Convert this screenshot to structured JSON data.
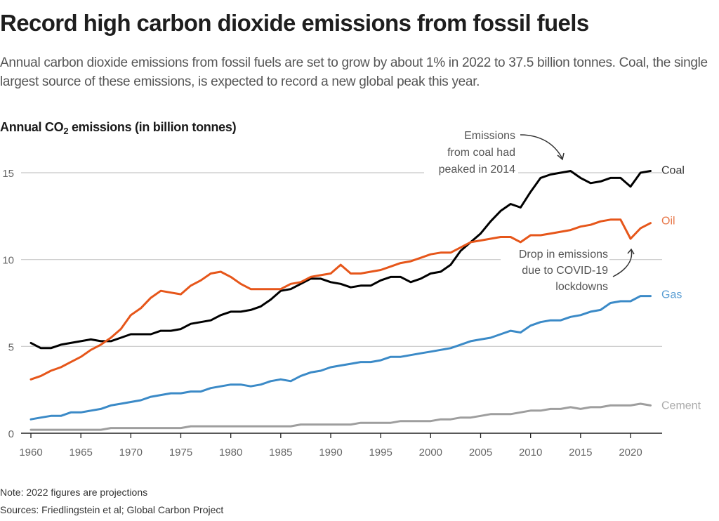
{
  "header": {
    "title": "Record high carbon dioxide emissions from fossil fuels",
    "subtitle": "Annual carbon dioxide emissions from fossil fuels are set to grow by about 1% in 2022 to 37.5 billion tonnes. Coal, the single largest source of these emissions, is expected to record a new global peak this year."
  },
  "chart_title": {
    "prefix": "Annual CO",
    "subscript": "2",
    "suffix": " emissions (in billion tonnes)"
  },
  "footer": {
    "note": "Note: 2022 figures are projections",
    "source": "Sources: Friedlingstein et al; Global Carbon Project"
  },
  "chart_data": {
    "type": "line",
    "title": "Annual CO2 emissions (in billion tonnes)",
    "xlabel": "",
    "ylabel": "",
    "xlim": [
      1960,
      2022
    ],
    "ylim": [
      0,
      15
    ],
    "grid": true,
    "legend": "inline-right",
    "x_ticks": [
      1960,
      1965,
      1970,
      1975,
      1980,
      1985,
      1990,
      1995,
      2000,
      2005,
      2010,
      2015,
      2020
    ],
    "y_ticks": [
      0,
      5,
      10,
      15
    ],
    "x": [
      1960,
      1961,
      1962,
      1963,
      1964,
      1965,
      1966,
      1967,
      1968,
      1969,
      1970,
      1971,
      1972,
      1973,
      1974,
      1975,
      1976,
      1977,
      1978,
      1979,
      1980,
      1981,
      1982,
      1983,
      1984,
      1985,
      1986,
      1987,
      1988,
      1989,
      1990,
      1991,
      1992,
      1993,
      1994,
      1995,
      1996,
      1997,
      1998,
      1999,
      2000,
      2001,
      2002,
      2003,
      2004,
      2005,
      2006,
      2007,
      2008,
      2009,
      2010,
      2011,
      2012,
      2013,
      2014,
      2015,
      2016,
      2017,
      2018,
      2019,
      2020,
      2021,
      2022
    ],
    "series": [
      {
        "name": "Coal",
        "color": "#000000",
        "label_color": "#333333",
        "values": [
          5.2,
          4.9,
          4.9,
          5.1,
          5.2,
          5.3,
          5.4,
          5.3,
          5.3,
          5.5,
          5.7,
          5.7,
          5.7,
          5.9,
          5.9,
          6.0,
          6.3,
          6.4,
          6.5,
          6.8,
          7.0,
          7.0,
          7.1,
          7.3,
          7.7,
          8.2,
          8.3,
          8.6,
          8.9,
          8.9,
          8.7,
          8.6,
          8.4,
          8.5,
          8.5,
          8.8,
          9.0,
          9.0,
          8.7,
          8.9,
          9.2,
          9.3,
          9.7,
          10.5,
          11.0,
          11.5,
          12.2,
          12.8,
          13.2,
          13.0,
          13.9,
          14.7,
          14.9,
          15.0,
          15.1,
          14.7,
          14.4,
          14.5,
          14.7,
          14.7,
          14.2,
          15.0,
          15.1
        ]
      },
      {
        "name": "Oil",
        "color": "#e6561a",
        "label_color": "#e8784a",
        "values": [
          3.1,
          3.3,
          3.6,
          3.8,
          4.1,
          4.4,
          4.8,
          5.1,
          5.5,
          6.0,
          6.8,
          7.2,
          7.8,
          8.2,
          8.1,
          8.0,
          8.5,
          8.8,
          9.2,
          9.3,
          9.0,
          8.6,
          8.3,
          8.3,
          8.3,
          8.3,
          8.6,
          8.7,
          9.0,
          9.1,
          9.2,
          9.7,
          9.2,
          9.2,
          9.3,
          9.4,
          9.6,
          9.8,
          9.9,
          10.1,
          10.3,
          10.4,
          10.4,
          10.7,
          11.0,
          11.1,
          11.2,
          11.3,
          11.3,
          11.0,
          11.4,
          11.4,
          11.5,
          11.6,
          11.7,
          11.9,
          12.0,
          12.2,
          12.3,
          12.3,
          11.2,
          11.8,
          12.1
        ]
      },
      {
        "name": "Gas",
        "color": "#3b8ac7",
        "label_color": "#5a9ed3",
        "values": [
          0.8,
          0.9,
          1.0,
          1.0,
          1.2,
          1.2,
          1.3,
          1.4,
          1.6,
          1.7,
          1.8,
          1.9,
          2.1,
          2.2,
          2.3,
          2.3,
          2.4,
          2.4,
          2.6,
          2.7,
          2.8,
          2.8,
          2.7,
          2.8,
          3.0,
          3.1,
          3.0,
          3.3,
          3.5,
          3.6,
          3.8,
          3.9,
          4.0,
          4.1,
          4.1,
          4.2,
          4.4,
          4.4,
          4.5,
          4.6,
          4.7,
          4.8,
          4.9,
          5.1,
          5.3,
          5.4,
          5.5,
          5.7,
          5.9,
          5.8,
          6.2,
          6.4,
          6.5,
          6.5,
          6.7,
          6.8,
          7.0,
          7.1,
          7.5,
          7.6,
          7.6,
          7.9,
          7.9
        ]
      },
      {
        "name": "Cement",
        "color": "#9e9e9e",
        "label_color": "#aaaaaa",
        "values": [
          0.2,
          0.2,
          0.2,
          0.2,
          0.2,
          0.2,
          0.2,
          0.2,
          0.3,
          0.3,
          0.3,
          0.3,
          0.3,
          0.3,
          0.3,
          0.3,
          0.4,
          0.4,
          0.4,
          0.4,
          0.4,
          0.4,
          0.4,
          0.4,
          0.4,
          0.4,
          0.4,
          0.5,
          0.5,
          0.5,
          0.5,
          0.5,
          0.5,
          0.6,
          0.6,
          0.6,
          0.6,
          0.7,
          0.7,
          0.7,
          0.7,
          0.8,
          0.8,
          0.9,
          0.9,
          1.0,
          1.1,
          1.1,
          1.1,
          1.2,
          1.3,
          1.3,
          1.4,
          1.4,
          1.5,
          1.4,
          1.5,
          1.5,
          1.6,
          1.6,
          1.6,
          1.7,
          1.6
        ]
      }
    ],
    "annotations": [
      {
        "name": "coal-peak",
        "lines": [
          "Emissions",
          "from coal had",
          "peaked in 2014"
        ],
        "target_year": 2014
      },
      {
        "name": "covid-drop",
        "lines": [
          "Drop in emissions",
          "due to COVID-19",
          "lockdowns"
        ],
        "target_year": 2020
      }
    ]
  }
}
